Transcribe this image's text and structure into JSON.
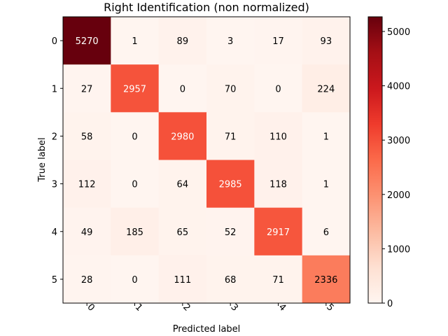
{
  "chart_data": {
    "type": "heatmap",
    "title": "Right Identification (non normalized)",
    "xlabel": "Predicted label",
    "ylabel": "True label",
    "x_categories": [
      "0",
      "1",
      "2",
      "3",
      "4",
      "5"
    ],
    "y_categories": [
      "0",
      "1",
      "2",
      "3",
      "4",
      "5"
    ],
    "values": [
      [
        5270,
        1,
        89,
        3,
        17,
        93
      ],
      [
        27,
        2957,
        0,
        70,
        0,
        224
      ],
      [
        58,
        0,
        2980,
        71,
        110,
        1
      ],
      [
        112,
        0,
        64,
        2985,
        118,
        1
      ],
      [
        49,
        185,
        65,
        52,
        2917,
        6
      ],
      [
        28,
        0,
        111,
        68,
        71,
        2336
      ]
    ],
    "colormap": "Reds",
    "color_range": [
      0,
      5270
    ],
    "colorbar_ticks": [
      "0",
      "1000",
      "2000",
      "3000",
      "4000",
      "5000"
    ],
    "x_tick_rotation": 45
  }
}
